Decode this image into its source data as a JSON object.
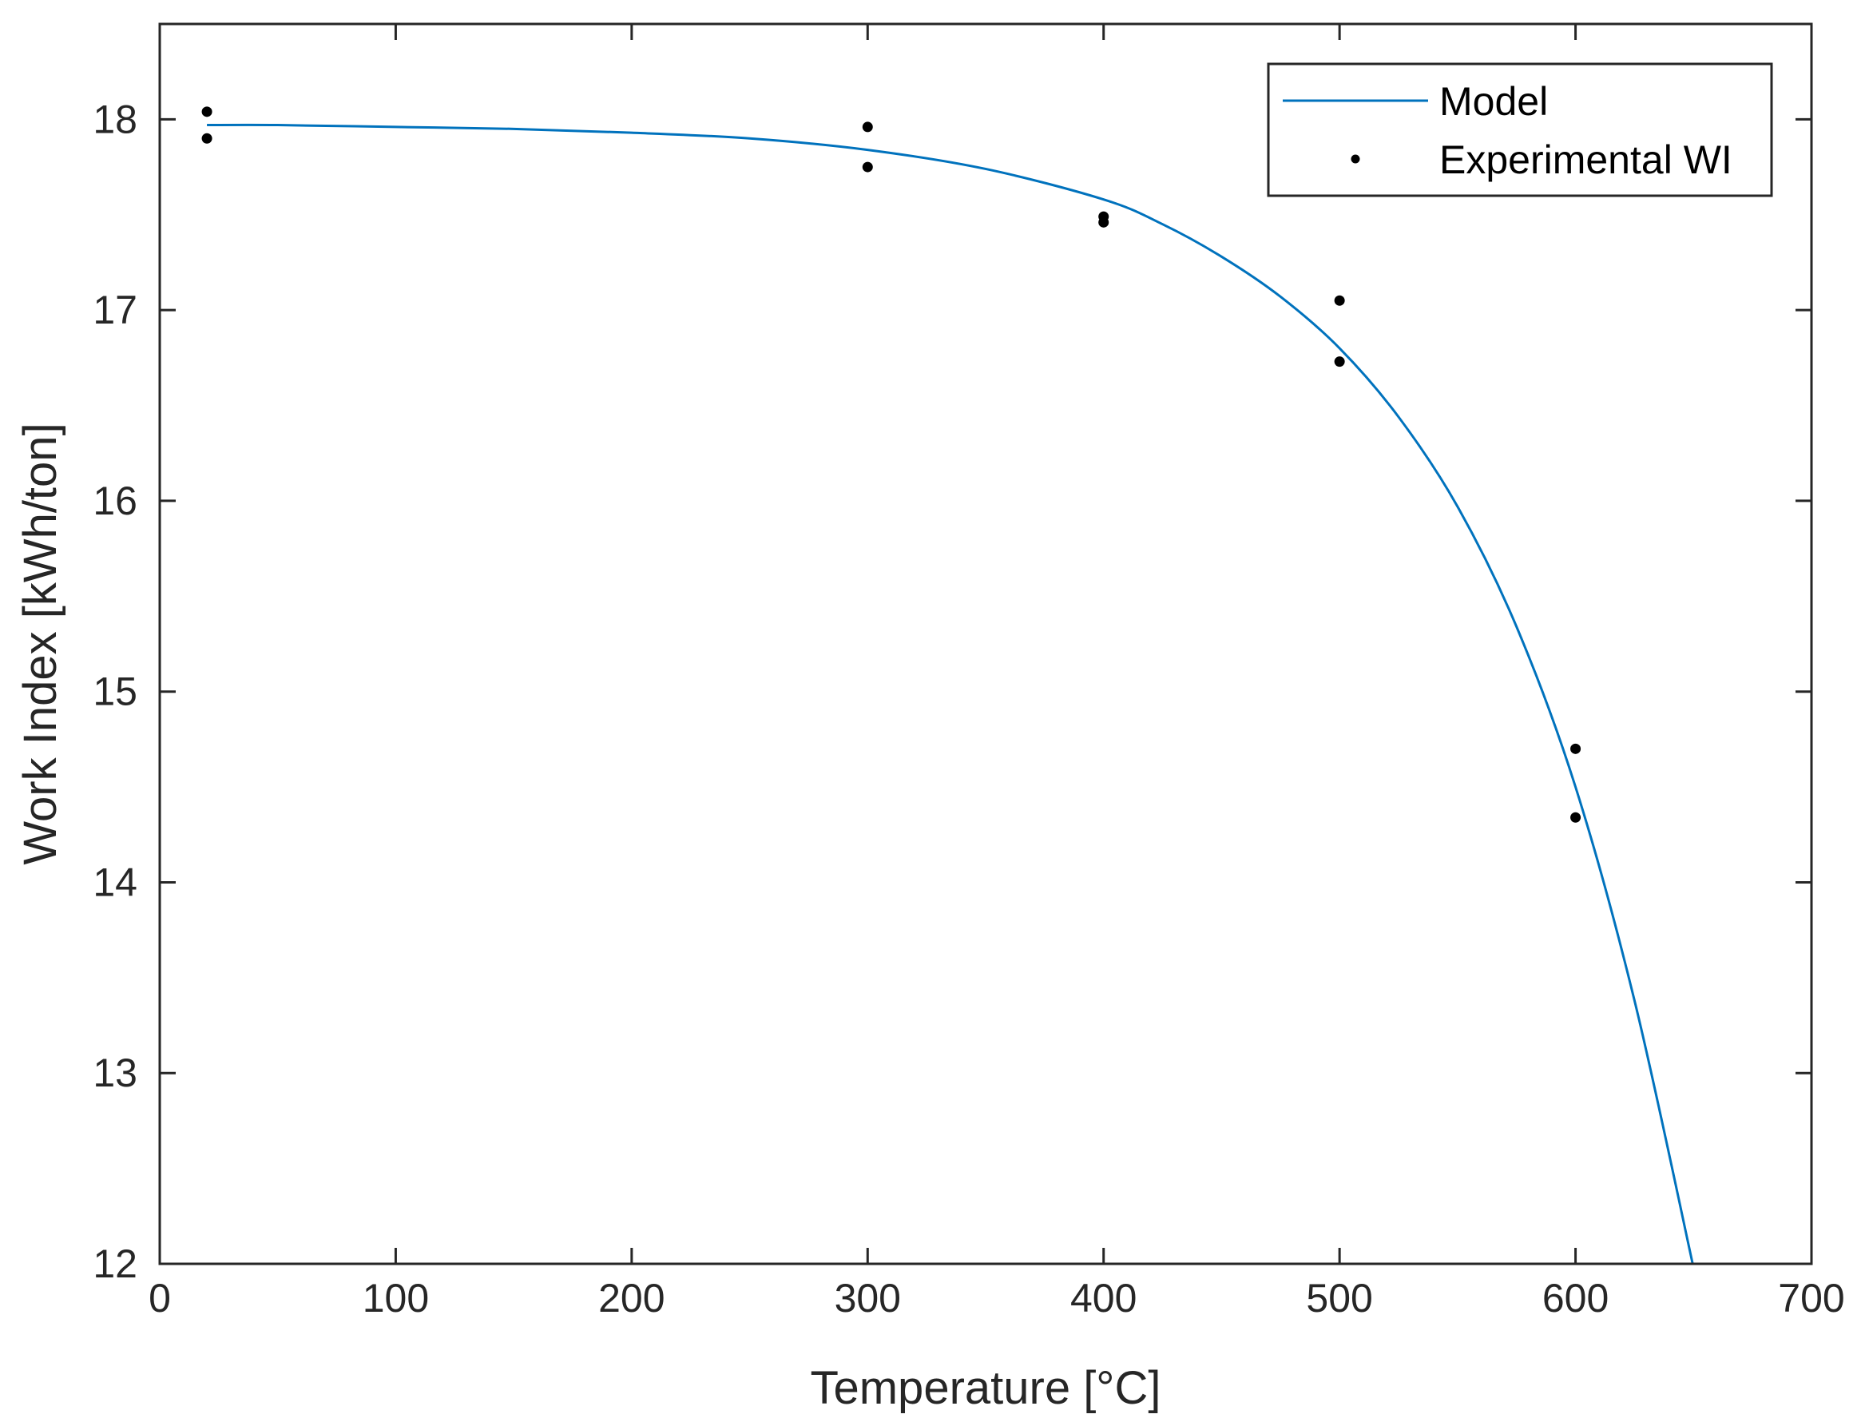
{
  "chart_data": {
    "type": "line",
    "xlabel": "Temperature [°C]",
    "ylabel": "Work Index [kWh/ton]",
    "xlim": [
      0,
      700
    ],
    "ylim": [
      12,
      18.5
    ],
    "xticks": [
      0,
      100,
      200,
      300,
      400,
      500,
      600,
      700
    ],
    "yticks": [
      12,
      13,
      14,
      15,
      16,
      17,
      18
    ],
    "grid": false,
    "legend_position": "top-right",
    "colors": {
      "model": "#0072BD",
      "experimental": "#000000",
      "axis": "#262626"
    },
    "series": [
      {
        "name": "Model",
        "kind": "line",
        "x": [
          20,
          50,
          100,
          150,
          200,
          250,
          300,
          350,
          400,
          425,
          450,
          475,
          500,
          525,
          550,
          575,
          600,
          625,
          650
        ],
        "y": [
          17.97,
          17.97,
          17.96,
          17.95,
          17.93,
          17.9,
          17.84,
          17.74,
          17.58,
          17.45,
          17.28,
          17.07,
          16.8,
          16.44,
          15.97,
          15.34,
          14.5,
          13.38,
          11.98
        ]
      },
      {
        "name": "Experimental WI",
        "kind": "scatter",
        "x": [
          20,
          20,
          300,
          300,
          400,
          400,
          500,
          500,
          600,
          600
        ],
        "y": [
          18.04,
          17.9,
          17.96,
          17.75,
          17.49,
          17.46,
          17.05,
          16.73,
          14.7,
          14.34
        ]
      }
    ]
  }
}
